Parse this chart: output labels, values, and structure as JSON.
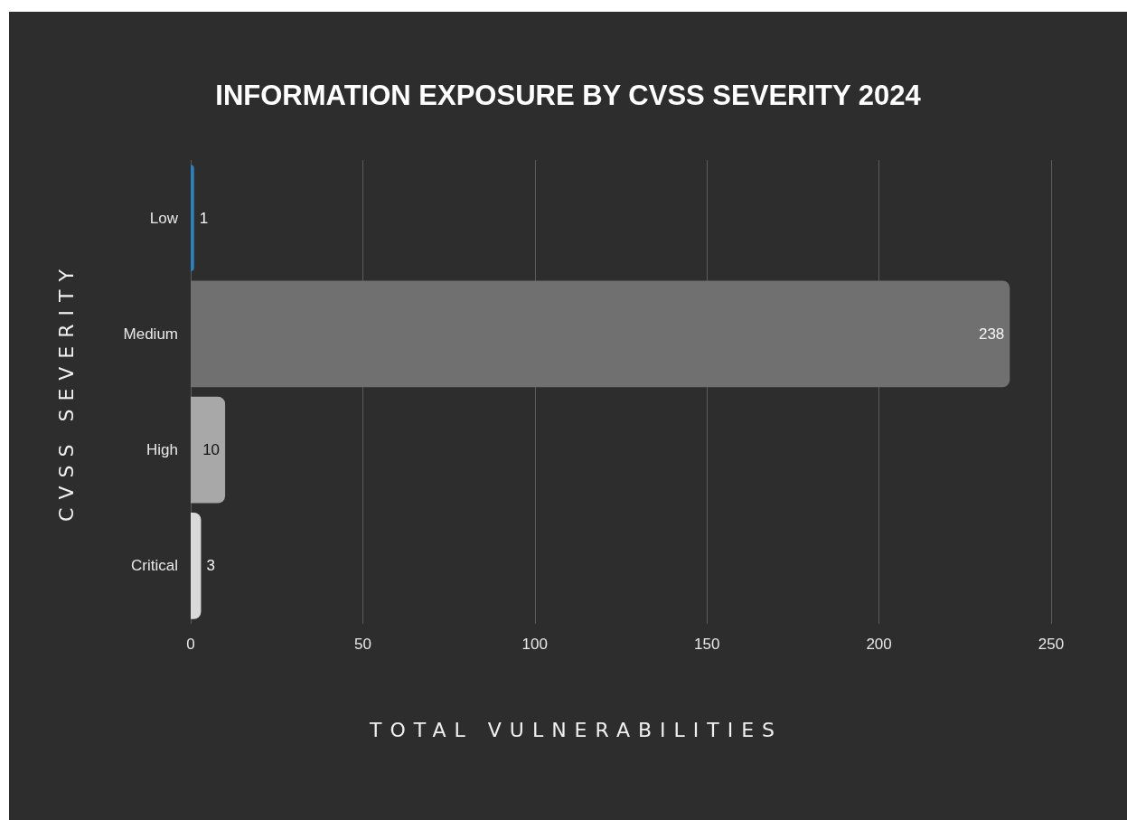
{
  "chart_data": {
    "type": "bar",
    "orientation": "horizontal",
    "title": "INFORMATION EXPOSURE BY CVSS SEVERITY 2024",
    "xlabel": "TOTAL VULNERABILITIES",
    "ylabel": "CVSS SEVERITY",
    "categories": [
      "Low",
      "Medium",
      "High",
      "Critical"
    ],
    "values": [
      1,
      238,
      10,
      3
    ],
    "colors": [
      "#2e7fb8",
      "#707070",
      "#a8a8a8",
      "#d9d9d9"
    ],
    "xlim": [
      0,
      250
    ],
    "xticks": [
      0,
      50,
      100,
      150,
      200,
      250
    ],
    "grid": "x",
    "data_labels": true
  }
}
